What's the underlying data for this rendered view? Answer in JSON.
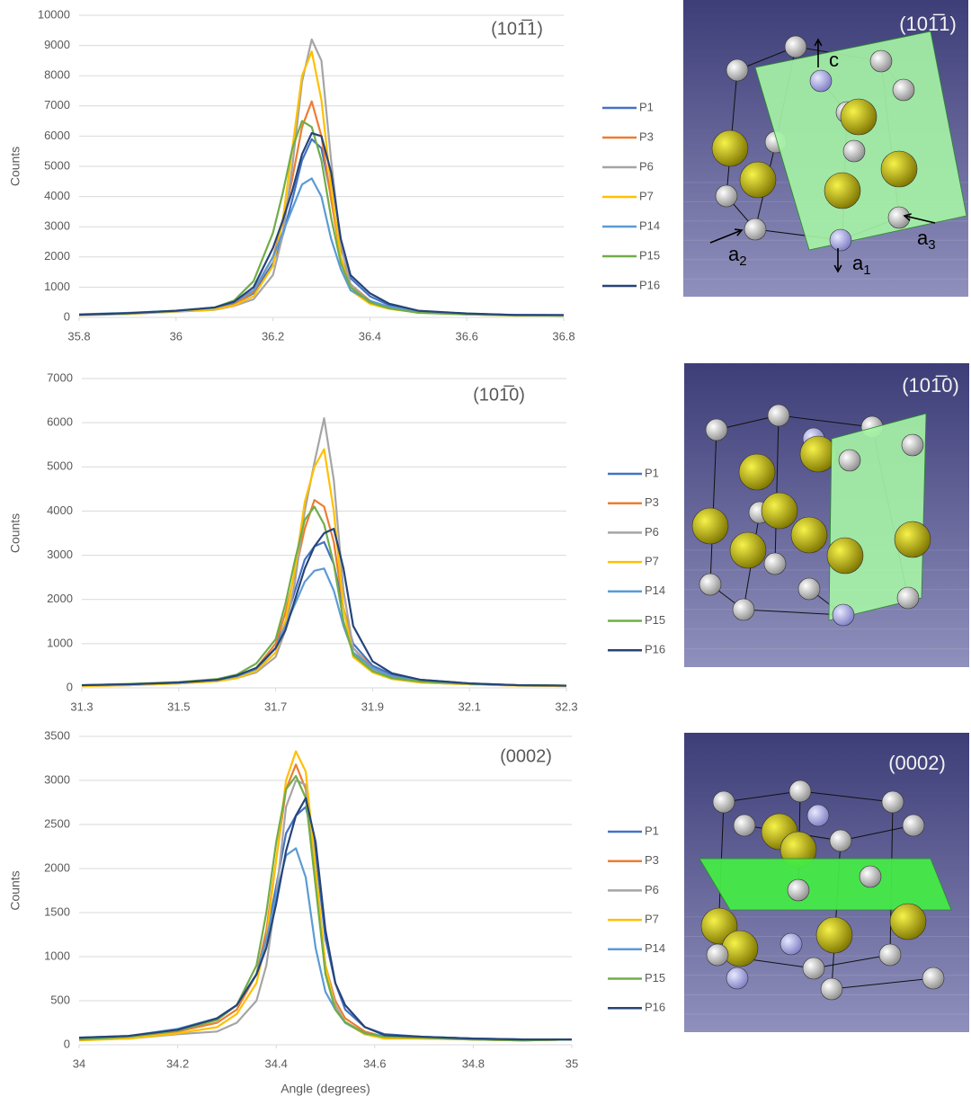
{
  "chart_data": [
    {
      "type": "line",
      "annotation": "(101̅1)",
      "y_label": "Counts",
      "legend": "right",
      "grid": true,
      "x": [
        35.8,
        35.9,
        36.0,
        36.08,
        36.12,
        36.16,
        36.2,
        36.22,
        36.24,
        36.26,
        36.28,
        36.3,
        36.32,
        36.34,
        36.36,
        36.4,
        36.44,
        36.5,
        36.6,
        36.7,
        36.8
      ],
      "xlim": [
        35.8,
        36.8
      ],
      "xticks": [
        35.8,
        36,
        36.2,
        36.4,
        36.6,
        36.8
      ],
      "ylim": [
        0,
        10000
      ],
      "yticks": [
        0,
        1000,
        2000,
        3000,
        4000,
        5000,
        6000,
        7000,
        8000,
        9000,
        10000
      ],
      "series": [
        {
          "name": "P1",
          "color": "#4472c4",
          "values": [
            80,
            120,
            200,
            300,
            450,
            800,
            1800,
            2700,
            3900,
            5200,
            5900,
            5600,
            4000,
            2300,
            1300,
            700,
            400,
            200,
            120,
            80,
            70
          ]
        },
        {
          "name": "P3",
          "color": "#ed7d31",
          "values": [
            90,
            130,
            210,
            280,
            420,
            850,
            2000,
            3100,
            4600,
            6300,
            7150,
            6000,
            3900,
            2000,
            1100,
            550,
            300,
            180,
            110,
            70,
            60
          ]
        },
        {
          "name": "P6",
          "color": "#a5a5a5",
          "values": [
            70,
            110,
            190,
            250,
            380,
            600,
            1400,
            2700,
            5000,
            7800,
            9200,
            8500,
            5200,
            2400,
            1100,
            500,
            300,
            160,
            100,
            70,
            60
          ]
        },
        {
          "name": "P7",
          "color": "#ffc000",
          "values": [
            80,
            120,
            200,
            260,
            400,
            700,
            1700,
            3200,
            5600,
            8000,
            8800,
            7200,
            4300,
            2000,
            900,
            450,
            280,
            160,
            100,
            60,
            60
          ]
        },
        {
          "name": "P14",
          "color": "#5b9bd5",
          "values": [
            100,
            150,
            220,
            320,
            500,
            900,
            2000,
            2800,
            3600,
            4400,
            4600,
            4000,
            2600,
            1600,
            900,
            550,
            350,
            200,
            120,
            80,
            70
          ]
        },
        {
          "name": "P15",
          "color": "#70ad47",
          "values": [
            90,
            130,
            210,
            330,
            560,
            1200,
            2800,
            4100,
            5600,
            6500,
            6300,
            5200,
            3300,
            1800,
            1000,
            500,
            300,
            150,
            100,
            70,
            60
          ]
        },
        {
          "name": "P16",
          "color": "#264478",
          "values": [
            90,
            140,
            220,
            330,
            520,
            1000,
            2300,
            3200,
            4200,
            5400,
            6100,
            6000,
            4800,
            2600,
            1400,
            800,
            450,
            220,
            130,
            80,
            80
          ]
        }
      ]
    },
    {
      "type": "line",
      "annotation": "(101̅0)",
      "y_label": "Counts",
      "legend": "right",
      "grid": true,
      "x": [
        31.3,
        31.4,
        31.5,
        31.58,
        31.62,
        31.66,
        31.7,
        31.72,
        31.74,
        31.76,
        31.78,
        31.8,
        31.82,
        31.84,
        31.86,
        31.9,
        31.94,
        32.0,
        32.1,
        32.2,
        32.3
      ],
      "xlim": [
        31.3,
        32.3
      ],
      "xticks": [
        31.3,
        31.5,
        31.7,
        31.9,
        32.1,
        32.3
      ],
      "ylim": [
        0,
        7000
      ],
      "yticks": [
        0,
        1000,
        2000,
        3000,
        4000,
        5000,
        6000,
        7000
      ],
      "series": [
        {
          "name": "P1",
          "color": "#4472c4",
          "values": [
            50,
            70,
            110,
            170,
            250,
            420,
            900,
            1500,
            2200,
            2900,
            3200,
            3300,
            2800,
            1800,
            1000,
            500,
            300,
            180,
            100,
            60,
            50
          ]
        },
        {
          "name": "P3",
          "color": "#ed7d31",
          "values": [
            60,
            80,
            120,
            170,
            260,
            450,
            1000,
            1700,
            2600,
            3600,
            4250,
            4100,
            3300,
            1800,
            900,
            450,
            250,
            150,
            90,
            60,
            50
          ]
        },
        {
          "name": "P6",
          "color": "#a5a5a5",
          "values": [
            40,
            60,
            100,
            150,
            220,
            350,
            700,
            1300,
            2400,
            4000,
            5100,
            6100,
            4700,
            2200,
            900,
            400,
            200,
            120,
            80,
            50,
            40
          ]
        },
        {
          "name": "P7",
          "color": "#ffc000",
          "values": [
            40,
            60,
            100,
            150,
            220,
            380,
            800,
            1500,
            2700,
            4200,
            5000,
            5400,
            4000,
            1800,
            700,
            350,
            200,
            120,
            80,
            50,
            40
          ]
        },
        {
          "name": "P14",
          "color": "#5b9bd5",
          "values": [
            60,
            80,
            120,
            180,
            260,
            430,
            900,
            1400,
            1900,
            2400,
            2650,
            2700,
            2200,
            1400,
            800,
            450,
            250,
            150,
            90,
            60,
            50
          ]
        },
        {
          "name": "P15",
          "color": "#70ad47",
          "values": [
            60,
            90,
            130,
            200,
            300,
            550,
            1100,
            1900,
            2900,
            3800,
            4100,
            3700,
            2800,
            1500,
            750,
            380,
            220,
            140,
            90,
            60,
            50
          ]
        },
        {
          "name": "P16",
          "color": "#264478",
          "values": [
            60,
            80,
            120,
            180,
            280,
            450,
            900,
            1300,
            2000,
            2700,
            3200,
            3500,
            3600,
            2700,
            1400,
            600,
            330,
            180,
            100,
            60,
            50
          ]
        }
      ]
    },
    {
      "type": "line",
      "annotation": "(0002)",
      "y_label": "Counts",
      "x_label": "Angle (degrees)",
      "legend": "right",
      "grid": true,
      "x": [
        34.0,
        34.1,
        34.2,
        34.28,
        34.32,
        34.36,
        34.38,
        34.4,
        34.42,
        34.44,
        34.46,
        34.48,
        34.5,
        34.52,
        34.54,
        34.58,
        34.62,
        34.7,
        34.8,
        34.9,
        35.0
      ],
      "xlim": [
        34,
        35
      ],
      "xticks": [
        34,
        34.2,
        34.4,
        34.6,
        34.8,
        35
      ],
      "ylim": [
        0,
        3500
      ],
      "yticks": [
        0,
        500,
        1000,
        1500,
        2000,
        2500,
        3000,
        3500
      ],
      "series": [
        {
          "name": "P1",
          "color": "#4472c4",
          "values": [
            70,
            90,
            150,
            300,
            450,
            800,
            1200,
            1800,
            2400,
            2600,
            2700,
            2200,
            1200,
            700,
            400,
            200,
            120,
            90,
            70,
            60,
            60
          ]
        },
        {
          "name": "P3",
          "color": "#ed7d31",
          "values": [
            60,
            80,
            150,
            250,
            400,
            800,
            1300,
            2100,
            2900,
            3180,
            2900,
            1900,
            900,
            500,
            300,
            150,
            90,
            80,
            60,
            50,
            60
          ]
        },
        {
          "name": "P6",
          "color": "#a5a5a5",
          "values": [
            60,
            70,
            120,
            150,
            250,
            500,
            900,
            1700,
            2700,
            3000,
            2950,
            2000,
            900,
            450,
            250,
            120,
            80,
            70,
            60,
            50,
            60
          ]
        },
        {
          "name": "P7",
          "color": "#ffc000",
          "values": [
            50,
            70,
            130,
            200,
            350,
            700,
            1200,
            2100,
            3000,
            3330,
            3100,
            2000,
            900,
            400,
            250,
            120,
            70,
            70,
            60,
            50,
            60
          ]
        },
        {
          "name": "P14",
          "color": "#5b9bd5",
          "values": [
            80,
            100,
            180,
            300,
            450,
            800,
            1200,
            1700,
            2150,
            2230,
            1900,
            1100,
            600,
            400,
            250,
            130,
            100,
            90,
            70,
            60,
            60
          ]
        },
        {
          "name": "P15",
          "color": "#70ad47",
          "values": [
            60,
            90,
            160,
            280,
            450,
            900,
            1500,
            2300,
            2900,
            3050,
            2800,
            1800,
            800,
            400,
            260,
            130,
            90,
            80,
            60,
            50,
            60
          ]
        },
        {
          "name": "P16",
          "color": "#264478",
          "values": [
            80,
            100,
            170,
            300,
            450,
            800,
            1100,
            1600,
            2200,
            2600,
            2800,
            2300,
            1300,
            700,
            450,
            200,
            110,
            90,
            70,
            60,
            60
          ]
        }
      ]
    }
  ],
  "structures": [
    {
      "plane": "(101̅1)",
      "axes": [
        {
          "letter": "c"
        },
        {
          "letter": "a",
          "sub": "2"
        },
        {
          "letter": "a",
          "sub": "1"
        },
        {
          "letter": "a",
          "sub": "3"
        }
      ]
    },
    {
      "plane": "(101̅0)"
    },
    {
      "plane": "(0002)"
    }
  ]
}
